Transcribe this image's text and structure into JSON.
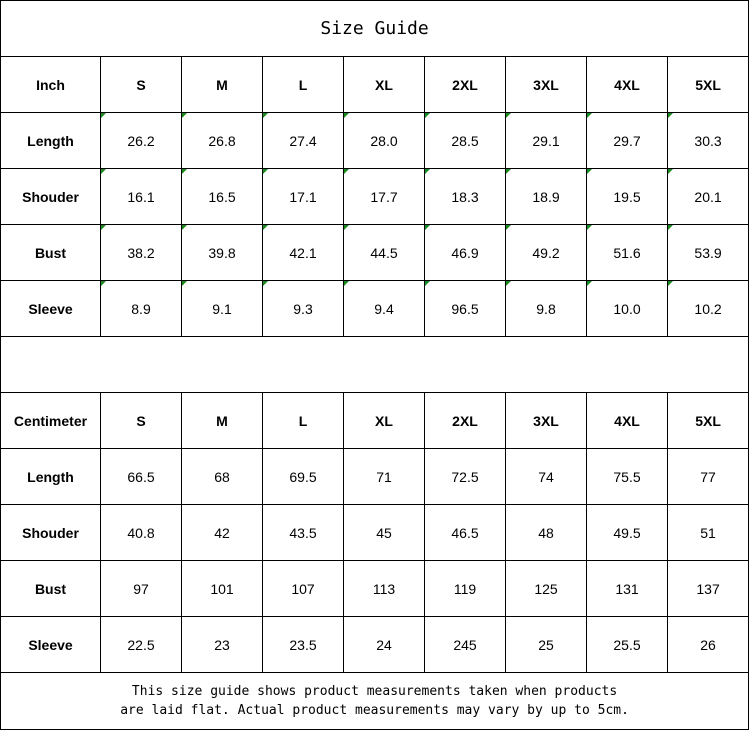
{
  "title": "Size Guide",
  "sizes": [
    "S",
    "M",
    "L",
    "XL",
    "2XL",
    "3XL",
    "4XL",
    "5XL"
  ],
  "inch": {
    "header": "Inch",
    "rows": [
      {
        "label": "Length",
        "values": [
          "26.2",
          "26.8",
          "27.4",
          "28.0",
          "28.5",
          "29.1",
          "29.7",
          "30.3"
        ]
      },
      {
        "label": "Shouder",
        "values": [
          "16.1",
          "16.5",
          "17.1",
          "17.7",
          "18.3",
          "18.9",
          "19.5",
          "20.1"
        ]
      },
      {
        "label": "Bust",
        "values": [
          "38.2",
          "39.8",
          "42.1",
          "44.5",
          "46.9",
          "49.2",
          "51.6",
          "53.9"
        ]
      },
      {
        "label": "Sleeve",
        "values": [
          "8.9",
          "9.1",
          "9.3",
          "9.4",
          "96.5",
          "9.8",
          "10.0",
          "10.2"
        ]
      }
    ]
  },
  "cm": {
    "header": "Centimeter",
    "rows": [
      {
        "label": "Length",
        "values": [
          "66.5",
          "68",
          "69.5",
          "71",
          "72.5",
          "74",
          "75.5",
          "77"
        ]
      },
      {
        "label": "Shouder",
        "values": [
          "40.8",
          "42",
          "43.5",
          "45",
          "46.5",
          "48",
          "49.5",
          "51"
        ]
      },
      {
        "label": "Bust",
        "values": [
          "97",
          "101",
          "107",
          "113",
          "119",
          "125",
          "131",
          "137"
        ]
      },
      {
        "label": "Sleeve",
        "values": [
          "22.5",
          "23",
          "23.5",
          "24",
          "245",
          "25",
          "25.5",
          "26"
        ]
      }
    ]
  },
  "footer": {
    "line1": "This size guide shows product measurements taken when products",
    "line2": "are laid flat. Actual product measurements may vary by up to 5cm."
  },
  "colors": {
    "cell_marker": "#1a8a1a"
  }
}
